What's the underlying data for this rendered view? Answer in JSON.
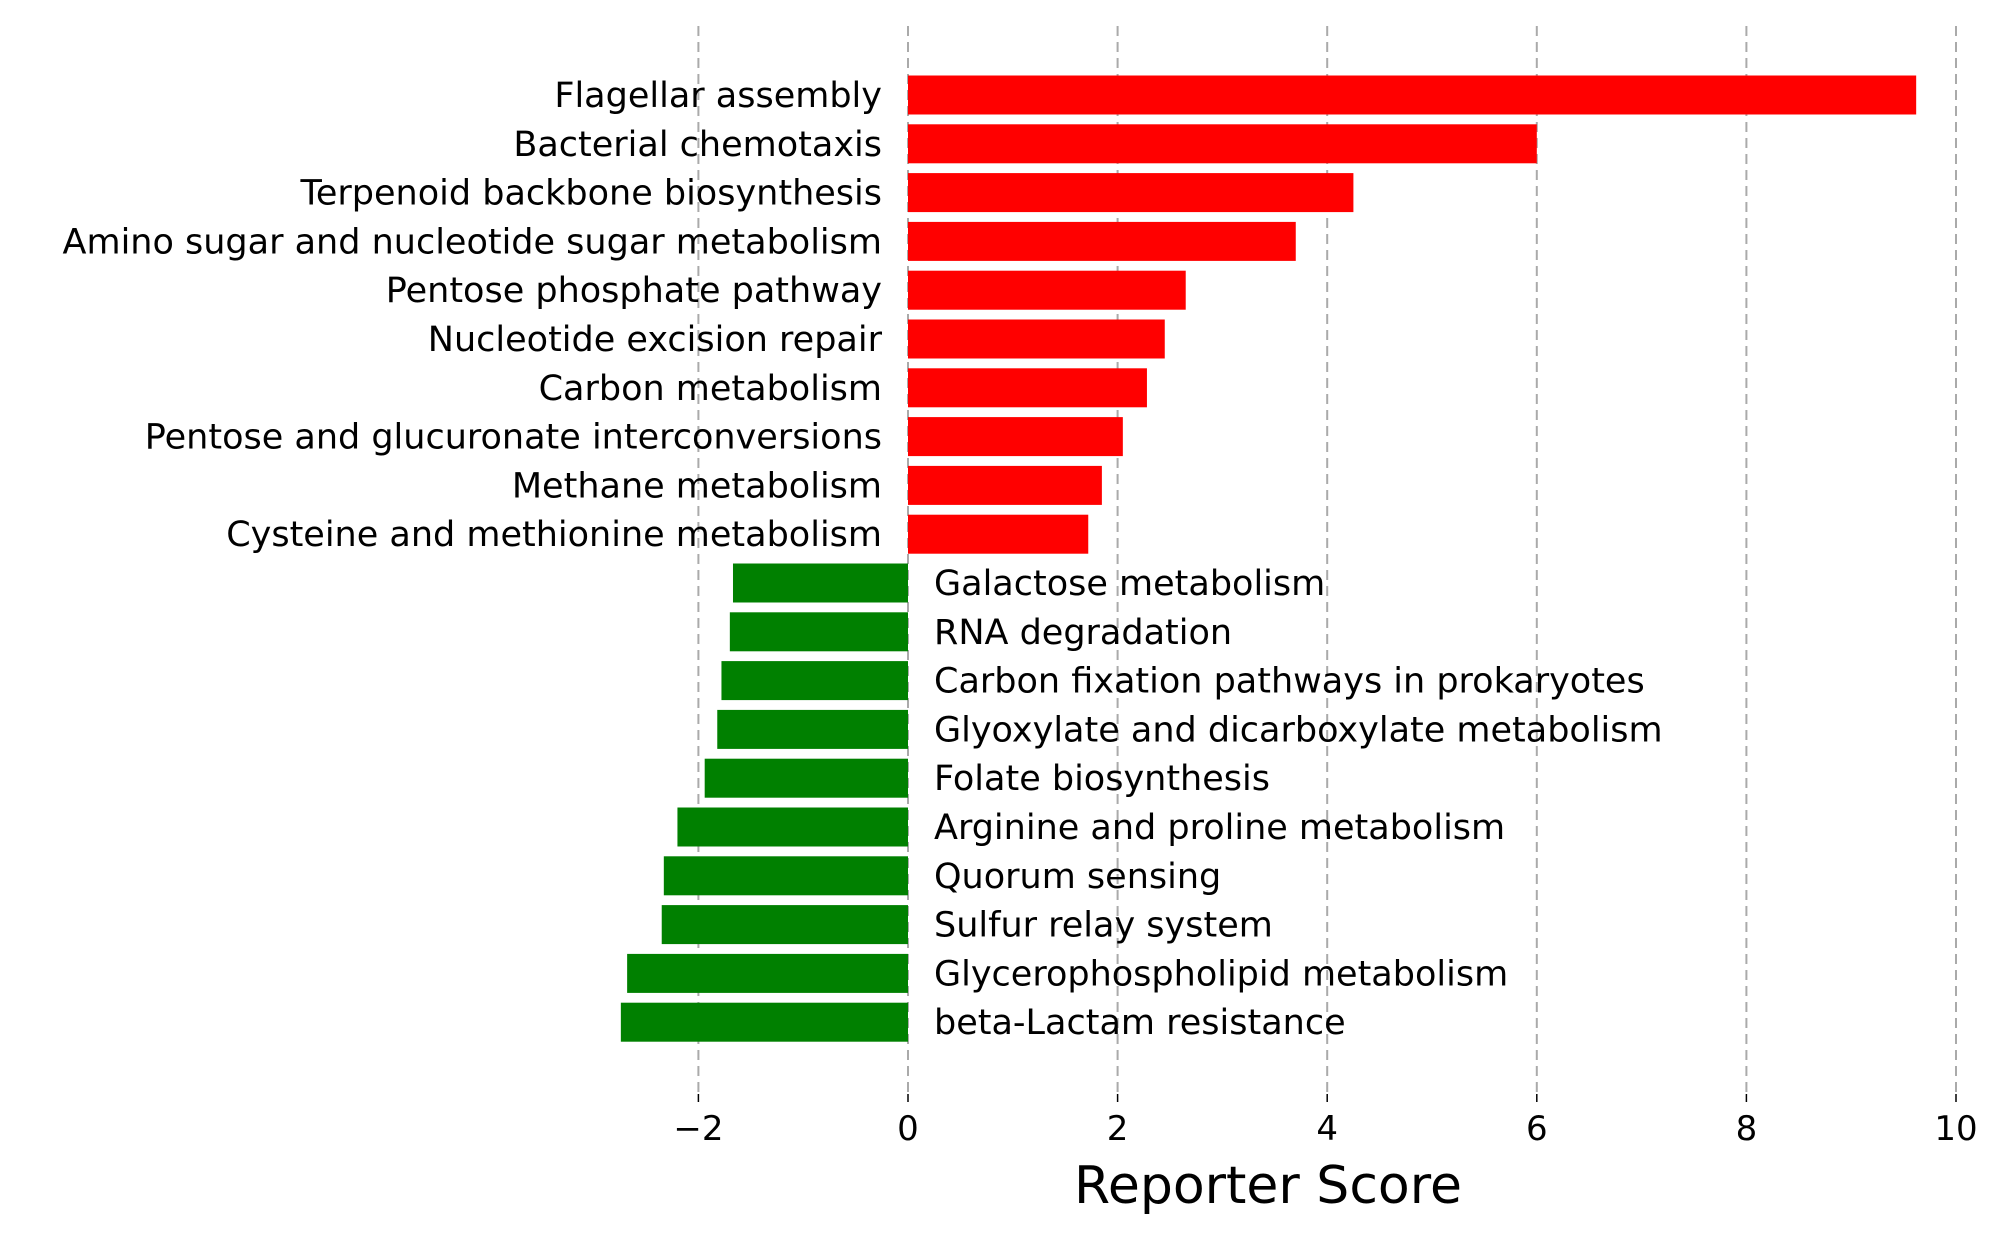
{
  "chart_data": {
    "type": "bar",
    "orientation": "horizontal",
    "title": "",
    "xlabel": "Reporter Score",
    "ylabel": "",
    "xlim": [
      -3,
      10
    ],
    "xticks": [
      -2,
      0,
      2,
      4,
      6,
      8,
      10
    ],
    "xtick_labels": [
      "−2",
      "0",
      "2",
      "4",
      "6",
      "8",
      "10"
    ],
    "grid": "vertical dashed",
    "colors": {
      "positive": "#ff0000",
      "negative": "#008000",
      "grid": "#aaaaaa"
    },
    "categories": [
      "Flagellar assembly",
      "Bacterial chemotaxis",
      "Terpenoid backbone biosynthesis",
      "Amino sugar and nucleotide sugar metabolism",
      "Pentose phosphate pathway",
      "Nucleotide excision repair",
      "Carbon metabolism",
      "Pentose and glucuronate interconversions",
      "Methane metabolism",
      "Cysteine and methionine metabolism",
      "Galactose metabolism",
      "RNA degradation",
      "Carbon fixation pathways in prokaryotes",
      "Glyoxylate and dicarboxylate metabolism",
      "Folate biosynthesis",
      "Arginine and proline metabolism",
      "Quorum sensing",
      "Sulfur relay system",
      "Glycerophospholipid metabolism",
      "beta-Lactam resistance"
    ],
    "values": [
      9.62,
      6.0,
      4.25,
      3.7,
      2.65,
      2.45,
      2.28,
      2.05,
      1.85,
      1.72,
      -1.67,
      -1.7,
      -1.78,
      -1.82,
      -1.94,
      -2.2,
      -2.33,
      -2.35,
      -2.68,
      -2.74
    ]
  }
}
